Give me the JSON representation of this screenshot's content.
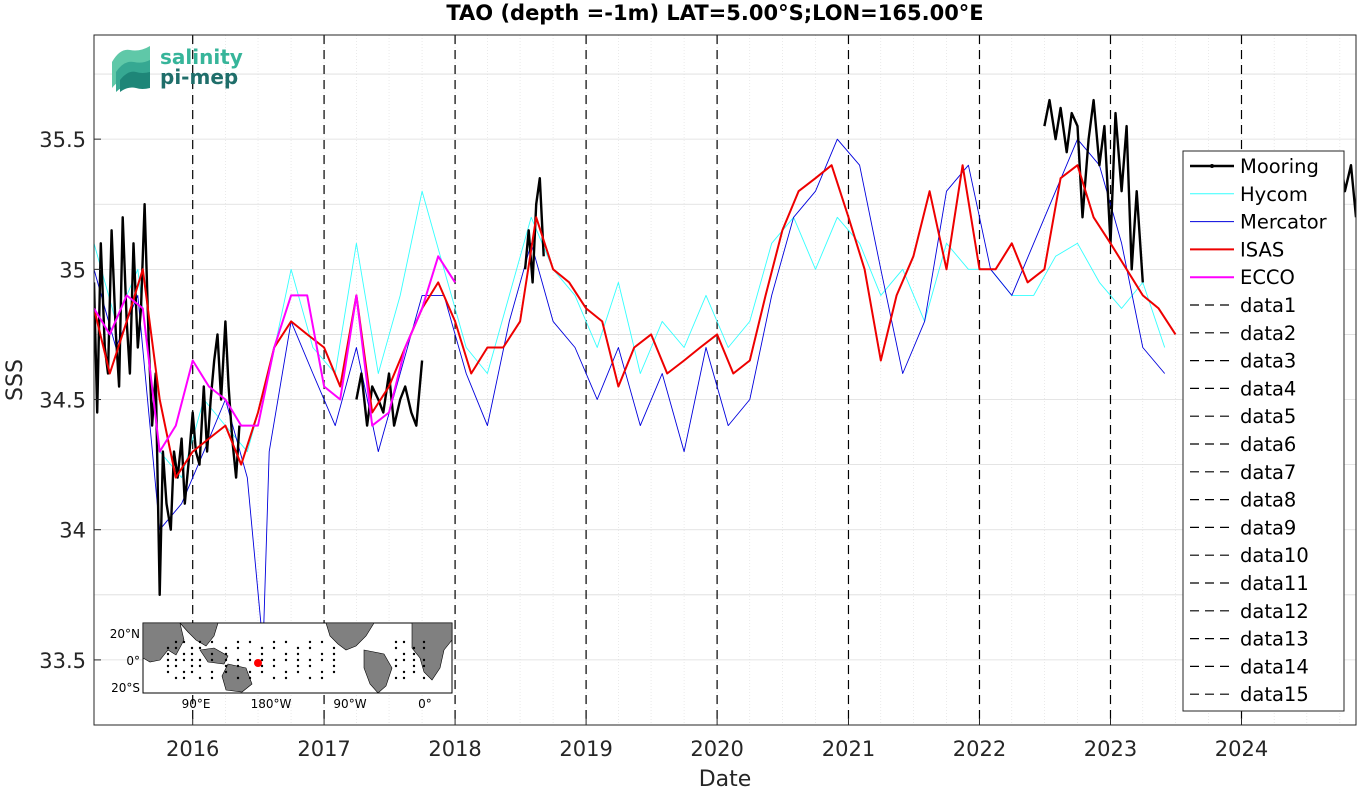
{
  "title": "TAO (depth =-1m) LAT=5.00°S;LON=165.00°E",
  "logo": {
    "line1": "salinity",
    "line2": "pi-mep"
  },
  "inset_map": {
    "lat_labels": [
      "20°N",
      "0°",
      "20°S"
    ],
    "lon_labels": [
      "90°E",
      "180°W",
      "90°W",
      "0°"
    ]
  },
  "colors": {
    "Mooring": "#000000",
    "Hycom": "#33ffff",
    "Mercator": "#0000dd",
    "ISAS": "#ee0000",
    "ECCO": "#ff00ff",
    "dashed": "#000000",
    "grid": "#dcdcdc"
  },
  "chart_data": {
    "type": "line",
    "title": "TAO (depth =-1m) LAT=5.00°S;LON=165.00°E",
    "xlabel": "Date",
    "ylabel": "SSS",
    "xlim": [
      "2015-04-01",
      "2024-11-15"
    ],
    "ylim": [
      33.25,
      35.9
    ],
    "xticks": [
      "2016",
      "2017",
      "2018",
      "2019",
      "2020",
      "2021",
      "2022",
      "2023",
      "2024"
    ],
    "yticks": [
      "33.5",
      "34",
      "34.5",
      "35",
      "35.5"
    ],
    "grid": true,
    "legend_position": "right",
    "series": [
      {
        "name": "Mooring",
        "style": "thick-solid",
        "x": [
          "2015-04-01",
          "2015-04-10",
          "2015-04-20",
          "2015-05-01",
          "2015-05-10",
          "2015-05-20",
          "2015-06-01",
          "2015-06-10",
          "2015-06-20",
          "2015-07-01",
          "2015-07-10",
          "2015-07-20",
          "2015-08-01",
          "2015-08-10",
          "2015-08-20",
          "2015-09-01",
          "2015-09-10",
          "2015-09-20",
          "2015-10-01",
          "2015-10-10",
          "2015-10-20",
          "2015-11-01",
          "2015-11-10",
          "2015-11-20",
          "2015-12-01",
          "2015-12-10",
          "2015-12-20",
          "2016-01-01",
          "2016-01-10",
          "2016-01-20",
          "2016-02-01",
          "2016-02-10",
          "2016-02-20",
          "2016-03-01",
          "2016-03-10",
          "2016-03-20",
          "2016-04-01",
          "2016-04-10",
          "2016-04-20",
          "2016-05-01",
          "2016-05-10"
        ],
        "y": [
          34.95,
          34.45,
          35.1,
          34.7,
          34.6,
          35.15,
          34.75,
          34.55,
          35.2,
          34.8,
          34.6,
          35.1,
          34.7,
          34.85,
          35.25,
          34.7,
          34.4,
          34.6,
          33.75,
          34.3,
          34.1,
          34.0,
          34.3,
          34.2,
          34.35,
          34.1,
          34.25,
          34.45,
          34.3,
          34.25,
          34.55,
          34.3,
          34.5,
          34.65,
          34.75,
          34.5,
          34.8,
          34.55,
          34.35,
          34.2,
          34.4
        ]
      },
      {
        "name": "Mooring-b",
        "style": "thick-solid",
        "x": [
          "2017-04-01",
          "2017-04-15",
          "2017-05-01",
          "2017-05-15",
          "2017-06-01",
          "2017-06-15",
          "2017-07-01",
          "2017-07-15",
          "2017-08-01",
          "2017-08-15",
          "2017-09-01",
          "2017-09-15",
          "2017-10-01"
        ],
        "y": [
          34.5,
          34.6,
          34.4,
          34.55,
          34.5,
          34.45,
          34.6,
          34.4,
          34.5,
          34.55,
          34.45,
          34.4,
          34.65
        ]
      },
      {
        "name": "Mooring-c",
        "style": "thick-solid",
        "x": [
          "2018-07-15",
          "2018-07-25",
          "2018-08-05",
          "2018-08-15",
          "2018-08-25",
          "2018-09-05"
        ],
        "y": [
          35.0,
          35.15,
          34.95,
          35.25,
          35.35,
          35.05
        ]
      },
      {
        "name": "Mooring-d",
        "style": "thick-solid",
        "x": [
          "2022-07-01",
          "2022-07-15",
          "2022-08-01",
          "2022-08-15",
          "2022-09-01",
          "2022-09-15",
          "2022-10-01",
          "2022-10-15",
          "2022-11-01",
          "2022-11-15",
          "2022-12-01",
          "2022-12-15",
          "2023-01-01",
          "2023-01-15",
          "2023-02-01",
          "2023-02-15",
          "2023-03-01",
          "2023-03-15",
          "2023-04-01"
        ],
        "y": [
          35.55,
          35.65,
          35.5,
          35.62,
          35.45,
          35.6,
          35.55,
          35.2,
          35.5,
          35.65,
          35.4,
          35.55,
          35.1,
          35.6,
          35.3,
          35.55,
          35.0,
          35.3,
          34.95
        ]
      },
      {
        "name": "Mooring-e",
        "style": "thick-solid",
        "x": [
          "2024-09-15",
          "2024-10-01",
          "2024-10-15",
          "2024-11-01",
          "2024-11-15"
        ],
        "y": [
          35.4,
          35.45,
          35.3,
          35.4,
          35.2
        ]
      },
      {
        "name": "Hycom",
        "style": "thin-solid",
        "x": [
          "2015-04-01",
          "2015-06-01",
          "2015-08-01",
          "2015-10-01",
          "2015-12-01",
          "2016-02-01",
          "2016-04-01",
          "2016-06-01",
          "2016-08-01",
          "2016-10-01",
          "2016-12-01",
          "2017-02-01",
          "2017-04-01",
          "2017-06-01",
          "2017-08-01",
          "2017-10-01",
          "2017-12-01",
          "2018-02-01",
          "2018-04-01",
          "2018-06-01",
          "2018-08-01",
          "2018-10-01",
          "2018-12-01",
          "2019-02-01",
          "2019-04-01",
          "2019-06-01",
          "2019-08-01",
          "2019-10-01",
          "2019-12-01",
          "2020-02-01",
          "2020-04-01",
          "2020-06-01",
          "2020-08-01",
          "2020-10-01",
          "2020-12-01",
          "2021-02-01",
          "2021-04-01",
          "2021-06-01",
          "2021-08-01",
          "2021-10-01",
          "2021-12-01",
          "2022-02-01",
          "2022-04-01",
          "2022-06-01",
          "2022-08-01",
          "2022-10-01",
          "2022-12-01",
          "2023-02-01",
          "2023-04-01",
          "2023-06-01"
        ],
        "y": [
          35.1,
          34.8,
          35.0,
          34.3,
          34.2,
          34.5,
          34.4,
          34.3,
          34.6,
          35.0,
          34.7,
          34.6,
          35.1,
          34.6,
          34.9,
          35.3,
          35.0,
          34.7,
          34.6,
          34.9,
          35.2,
          35.0,
          34.9,
          34.7,
          34.95,
          34.6,
          34.8,
          34.7,
          34.9,
          34.7,
          34.8,
          35.1,
          35.2,
          35.0,
          35.2,
          35.1,
          34.9,
          35.0,
          34.8,
          35.1,
          35.0,
          35.0,
          34.9,
          34.9,
          35.05,
          35.1,
          34.95,
          34.85,
          34.95,
          34.7
        ]
      },
      {
        "name": "Mercator",
        "style": "thin-solid",
        "x": [
          "2015-04-01",
          "2015-06-01",
          "2015-08-01",
          "2015-10-01",
          "2015-12-01",
          "2016-02-01",
          "2016-04-01",
          "2016-06-01",
          "2016-07-15",
          "2016-08-01",
          "2016-10-01",
          "2016-12-01",
          "2017-02-01",
          "2017-04-01",
          "2017-06-01",
          "2017-08-01",
          "2017-10-01",
          "2017-12-01",
          "2018-02-01",
          "2018-04-01",
          "2018-06-01",
          "2018-08-01",
          "2018-10-01",
          "2018-12-01",
          "2019-02-01",
          "2019-04-01",
          "2019-06-01",
          "2019-08-01",
          "2019-10-01",
          "2019-12-01",
          "2020-02-01",
          "2020-04-01",
          "2020-06-01",
          "2020-08-01",
          "2020-10-01",
          "2020-12-01",
          "2021-02-01",
          "2021-04-01",
          "2021-06-01",
          "2021-08-01",
          "2021-10-01",
          "2021-12-01",
          "2022-02-01",
          "2022-04-01",
          "2022-06-01",
          "2022-08-01",
          "2022-10-01",
          "2022-12-01",
          "2023-02-01",
          "2023-04-01",
          "2023-06-01"
        ],
        "y": [
          35.0,
          34.7,
          34.9,
          34.0,
          34.1,
          34.3,
          34.5,
          34.2,
          33.55,
          34.3,
          34.8,
          34.6,
          34.4,
          34.7,
          34.3,
          34.6,
          34.9,
          34.9,
          34.6,
          34.4,
          34.8,
          35.1,
          34.8,
          34.7,
          34.5,
          34.7,
          34.4,
          34.6,
          34.3,
          34.7,
          34.4,
          34.5,
          34.9,
          35.2,
          35.3,
          35.5,
          35.4,
          35.0,
          34.6,
          34.8,
          35.3,
          35.4,
          35.0,
          34.9,
          35.1,
          35.3,
          35.5,
          35.4,
          35.1,
          34.7,
          34.6
        ]
      },
      {
        "name": "ISAS",
        "style": "medium-solid",
        "x": [
          "2015-04-01",
          "2015-05-15",
          "2015-07-01",
          "2015-08-15",
          "2015-10-01",
          "2015-11-15",
          "2016-01-01",
          "2016-02-15",
          "2016-04-01",
          "2016-05-15",
          "2016-07-01",
          "2016-08-15",
          "2016-10-01",
          "2016-11-15",
          "2017-01-01",
          "2017-02-15",
          "2017-04-01",
          "2017-05-15",
          "2017-07-01",
          "2017-08-15",
          "2017-10-01",
          "2017-11-15",
          "2018-01-01",
          "2018-02-15",
          "2018-04-01",
          "2018-05-15",
          "2018-07-01",
          "2018-08-15",
          "2018-10-01",
          "2018-11-15",
          "2019-01-01",
          "2019-02-15",
          "2019-04-01",
          "2019-05-15",
          "2019-07-01",
          "2019-08-15",
          "2019-10-01",
          "2019-11-15",
          "2020-01-01",
          "2020-02-15",
          "2020-04-01",
          "2020-05-15",
          "2020-07-01",
          "2020-08-15",
          "2020-10-01",
          "2020-11-15",
          "2021-01-01",
          "2021-02-15",
          "2021-04-01",
          "2021-05-15",
          "2021-07-01",
          "2021-08-15",
          "2021-10-01",
          "2021-11-15",
          "2022-01-01",
          "2022-02-15",
          "2022-04-01",
          "2022-05-15",
          "2022-07-01",
          "2022-08-15",
          "2022-10-01",
          "2022-11-15",
          "2023-01-01",
          "2023-02-15",
          "2023-04-01",
          "2023-05-15",
          "2023-07-01"
        ],
        "y": [
          34.85,
          34.6,
          34.8,
          35.0,
          34.5,
          34.2,
          34.3,
          34.35,
          34.4,
          34.25,
          34.45,
          34.7,
          34.8,
          34.75,
          34.7,
          34.55,
          34.9,
          34.45,
          34.55,
          34.7,
          34.85,
          34.95,
          34.8,
          34.6,
          34.7,
          34.7,
          34.8,
          35.2,
          35.0,
          34.95,
          34.85,
          34.8,
          34.55,
          34.7,
          34.75,
          34.6,
          34.65,
          34.7,
          34.75,
          34.6,
          34.65,
          34.9,
          35.15,
          35.3,
          35.35,
          35.4,
          35.2,
          35.0,
          34.65,
          34.9,
          35.05,
          35.3,
          35.0,
          35.4,
          35.0,
          35.0,
          35.1,
          34.95,
          35.0,
          35.35,
          35.4,
          35.2,
          35.1,
          35.0,
          34.9,
          34.85,
          34.75
        ]
      },
      {
        "name": "ECCO",
        "style": "medium-solid",
        "x": [
          "2015-04-01",
          "2015-05-15",
          "2015-07-01",
          "2015-08-15",
          "2015-10-01",
          "2015-11-15",
          "2016-01-01",
          "2016-02-15",
          "2016-04-01",
          "2016-05-15",
          "2016-07-01",
          "2016-08-15",
          "2016-10-01",
          "2016-11-15",
          "2017-01-01",
          "2017-02-15",
          "2017-04-01",
          "2017-05-15",
          "2017-07-01",
          "2017-08-15",
          "2017-10-01",
          "2017-11-15",
          "2018-01-01"
        ],
        "y": [
          34.85,
          34.75,
          34.9,
          34.85,
          34.3,
          34.4,
          34.65,
          34.55,
          34.5,
          34.4,
          34.4,
          34.7,
          34.9,
          34.9,
          34.55,
          34.5,
          34.9,
          34.4,
          34.45,
          34.7,
          34.85,
          35.05,
          34.95
        ]
      }
    ],
    "legend_entries": [
      "Mooring",
      "Hycom",
      "Mercator",
      "ISAS",
      "ECCO",
      "data1",
      "data2",
      "data3",
      "data4",
      "data5",
      "data6",
      "data7",
      "data8",
      "data9",
      "data10",
      "data11",
      "data12",
      "data13",
      "data14",
      "data15"
    ],
    "vlines": [
      "2016-01-01",
      "2017-01-01",
      "2018-01-01",
      "2019-01-01",
      "2020-01-01",
      "2021-01-01",
      "2022-01-01",
      "2023-01-01",
      "2024-01-01"
    ]
  }
}
